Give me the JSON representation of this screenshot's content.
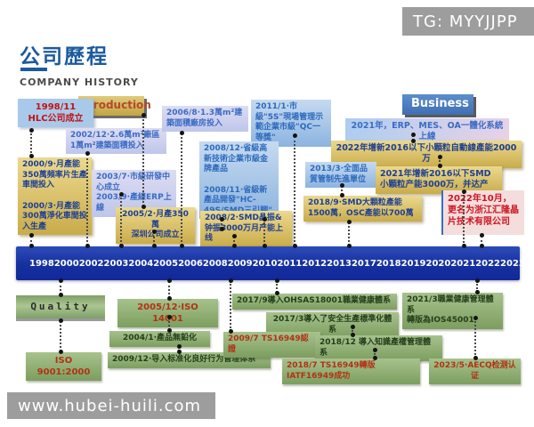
{
  "watermarks": {
    "tg": "TG: MYYJJPP",
    "url": "www.hubei-huili.com"
  },
  "header": {
    "title": "公司歷程",
    "subtitle": "COMPANY HISTORY"
  },
  "timeline": {
    "years": [
      "1998",
      "2000",
      "2002",
      "2003",
      "2004",
      "2005",
      "2006",
      "2008",
      "2009",
      "2010",
      "2011",
      "2012",
      "2013",
      "2017",
      "2018",
      "2019",
      "2020",
      "2021",
      "2022",
      "2023"
    ]
  },
  "labels": {
    "production": "Production",
    "business": "Business",
    "quality": "Quality"
  },
  "events_top": [
    {
      "text": "1998/11\nHLC公司成立"
    },
    {
      "text": "2002/12·2.6萬m²廠區\n1萬m²建築面積投入"
    },
    {
      "text": "2006/8·1.3萬m²建築面積廠房投入"
    },
    {
      "text": "2011/1·市級\"5S\"現場管理示範企業市級\"QC一等獎\""
    },
    {
      "text": "2021年，ERP、MES、OA一體化系統上線"
    },
    {
      "text": "2022年增新2016以下小顆粒自動線產能2000万"
    },
    {
      "text": "2000/9·月產能350萬頻率片生產車間投入\n\n2000/3·月產能300萬淨化車間投入生產"
    },
    {
      "text": "2003/7·市級研發中心成立\n2003/9·產線ERP上線"
    },
    {
      "text": "2008/12·省級高新技術企業市級金牌產品\n\n2008/11·省級新產品開發\"HC-49S/SMD三引腳\""
    },
    {
      "text": "2013/3·全面品質管制先進單位"
    },
    {
      "text": "2021年增新2016以下SMD小顆粒产能3000万，并达产"
    },
    {
      "text": "2005/2·月產350萬\n深圳公司成立"
    },
    {
      "text": "2008/2·SMD晶振&钟振3000万月产能上线"
    },
    {
      "text": "2018/9·SMD大顆粒產能1500萬，OSC產能以700萬"
    },
    {
      "text": "2022年10月，更名为浙江汇隆晶片技术有限公司"
    }
  ],
  "events_bottom": [
    {
      "text": "2005/12·ISO 14001"
    },
    {
      "text": "2017/9導入OHSAS18001職業健康體系"
    },
    {
      "text": "2021/3職業健康管理體系\n轉版為IOS45001"
    },
    {
      "text": "2004/1·產品無鉛化"
    },
    {
      "text": "2017/3導入了安全生產標準化體系"
    },
    {
      "text": "ISO 9001:2000"
    },
    {
      "text": "2009/12·导入标准化良好行为管理体系"
    },
    {
      "text": "2009/7 TS16949認證"
    },
    {
      "text": "2018/12 導入知識產權管理體系"
    },
    {
      "text": "2018/7 TS16949轉版IATF16949成功"
    },
    {
      "text": "2023/5·AECQ检测认证"
    }
  ],
  "colors": {
    "title_blue": "#1b5a9e",
    "timeline_blue": "#16309e",
    "gold": "#c9ab4a",
    "green": "#7c9e5f",
    "red_text": "#c41212",
    "lavender": "#bfc6ea",
    "watermark_gray": "#9d9d9d"
  }
}
